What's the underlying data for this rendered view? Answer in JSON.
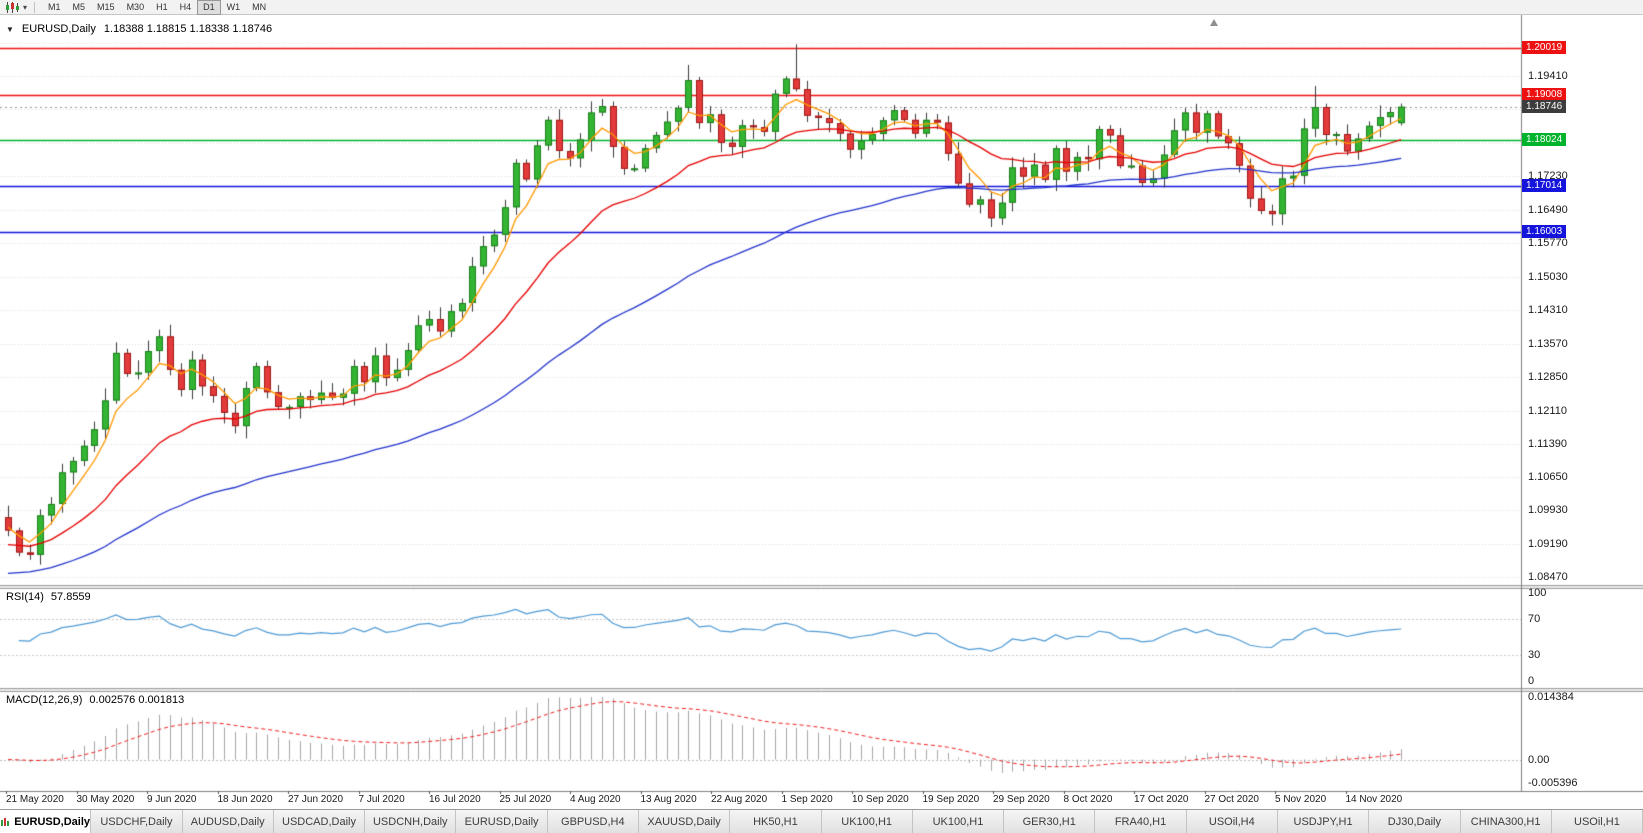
{
  "toolbar": {
    "timeframes": [
      "M1",
      "M5",
      "M15",
      "M30",
      "H1",
      "H4",
      "D1",
      "W1",
      "MN"
    ],
    "active_timeframe": "D1",
    "chart_type_icon": "candlestick-icon",
    "dropdown_icon": "chevron-down-icon"
  },
  "chart": {
    "header": {
      "symbol": "EURUSD,Daily",
      "ohlc": "1.18388 1.18815 1.18338 1.18746"
    }
  },
  "rsi": {
    "label": "RSI(14)",
    "value": "57.8559",
    "axis_labels": [
      "100",
      "70",
      "30",
      "0"
    ],
    "levels": [
      70,
      30
    ],
    "color": "#4f9bd5",
    "level_line_color": "#c9c9c9"
  },
  "macd": {
    "label": "MACD(12,26,9)",
    "value": "0.002576 0.001813",
    "axis_labels": {
      "max": "0.014384",
      "zero": "0.00",
      "min": "-0.005396"
    },
    "hist_color": "#a6a6a6",
    "signal_color": "#ee2222"
  },
  "tabs": [
    {
      "label": "EURUSD,Daily",
      "active": true
    },
    {
      "label": "USDCHF,Daily",
      "active": false
    },
    {
      "label": "AUDUSD,Daily",
      "active": false
    },
    {
      "label": "USDCAD,Daily",
      "active": false
    },
    {
      "label": "USDCNH,Daily",
      "active": false
    },
    {
      "label": "EURUSD,Daily",
      "active": false
    },
    {
      "label": "GBPUSD,H4",
      "active": false
    },
    {
      "label": "XAUUSD,Daily",
      "active": false
    },
    {
      "label": "HK50,H1",
      "active": false
    },
    {
      "label": "UK100,H1",
      "active": false
    },
    {
      "label": "UK100,H1",
      "active": false
    },
    {
      "label": "GER30,H1",
      "active": false
    },
    {
      "label": "FRA40,H1",
      "active": false
    },
    {
      "label": "USOil,H4",
      "active": false
    },
    {
      "label": "USDJPY,H1",
      "active": false
    },
    {
      "label": "DJ30,Daily",
      "active": false
    },
    {
      "label": "CHINA300,H1",
      "active": false
    },
    {
      "label": "USOil,H1",
      "active": false
    }
  ],
  "chart_data": {
    "type": "candlestick",
    "title": "EURUSD,Daily",
    "x_dates": [
      "21 May 2020",
      "30 May 2020",
      "9 Jun 2020",
      "18 Jun 2020",
      "27 Jun 2020",
      "7 Jul 2020",
      "16 Jul 2020",
      "25 Jul 2020",
      "4 Aug 2020",
      "13 Aug 2020",
      "22 Aug 2020",
      "1 Sep 2020",
      "10 Sep 2020",
      "19 Sep 2020",
      "29 Sep 2020",
      "8 Oct 2020",
      "17 Oct 2020",
      "27 Oct 2020",
      "5 Nov 2020",
      "14 Nov 2020"
    ],
    "price_axis": {
      "min": 1.083,
      "max": 1.2075,
      "ticks_labeled": [
        1.1941,
        1.1723,
        1.1649,
        1.1577,
        1.1503,
        1.1431,
        1.1357,
        1.1285,
        1.1211,
        1.1139,
        1.1065,
        1.0993,
        1.0919,
        1.0847
      ],
      "ticks_hidden": [
        1.2013,
        1.1869,
        1.1795
      ]
    },
    "first_open": 1.0978,
    "wick": 0.0022,
    "closes": [
      1.0949,
      1.0901,
      1.0896,
      1.0982,
      1.1007,
      1.1076,
      1.1101,
      1.1134,
      1.117,
      1.1233,
      1.1337,
      1.1291,
      1.1294,
      1.1341,
      1.1373,
      1.13,
      1.1256,
      1.1322,
      1.1264,
      1.1243,
      1.1206,
      1.1177,
      1.126,
      1.1308,
      1.1251,
      1.1219,
      1.1219,
      1.1242,
      1.1234,
      1.125,
      1.1239,
      1.1248,
      1.1308,
      1.1273,
      1.1331,
      1.1282,
      1.13,
      1.1343,
      1.1397,
      1.1411,
      1.1384,
      1.1428,
      1.1446,
      1.1526,
      1.157,
      1.1595,
      1.1655,
      1.1752,
      1.1716,
      1.179,
      1.1846,
      1.1778,
      1.1762,
      1.1803,
      1.1862,
      1.1876,
      1.1787,
      1.1739,
      1.174,
      1.1784,
      1.1813,
      1.1842,
      1.1872,
      1.1933,
      1.1839,
      1.1858,
      1.1796,
      1.1787,
      1.1834,
      1.183,
      1.182,
      1.1903,
      1.1936,
      1.1913,
      1.1855,
      1.185,
      1.1839,
      1.1816,
      1.1781,
      1.1801,
      1.1815,
      1.1845,
      1.1867,
      1.1846,
      1.1816,
      1.1846,
      1.184,
      1.1772,
      1.1707,
      1.1661,
      1.1672,
      1.1631,
      1.1665,
      1.1742,
      1.1722,
      1.1748,
      1.1715,
      1.1784,
      1.1733,
      1.1765,
      1.176,
      1.1826,
      1.1812,
      1.1745,
      1.1746,
      1.1708,
      1.1718,
      1.177,
      1.1823,
      1.1862,
      1.1818,
      1.186,
      1.181,
      1.1795,
      1.1746,
      1.1674,
      1.1647,
      1.164,
      1.1718,
      1.1724,
      1.1827,
      1.1874,
      1.1813,
      1.1815,
      1.1777,
      1.1805,
      1.1833,
      1.1852,
      1.1863,
      1.18746
    ],
    "overrides": {
      "2": {
        "low": 1.0885
      },
      "63": {
        "high": 1.1966
      },
      "73": {
        "high": 1.2011
      },
      "91": {
        "low": 1.1612
      },
      "116": {
        "low": 1.164
      },
      "121": {
        "high": 1.192
      },
      "129": {
        "open": 1.18388,
        "high": 1.18815,
        "low": 1.18338,
        "close": 1.18746
      }
    },
    "candle_up_color": "#33b533",
    "candle_up_border": "#1d7f1d",
    "candle_down_color": "#e33b3b",
    "candle_down_border": "#a01818",
    "wick_color": "#3c3c3c",
    "hlines": [
      {
        "price": 1.20019,
        "label": "1.20019",
        "color": "#ee1111"
      },
      {
        "price": 1.19008,
        "label": "1.19008",
        "color": "#ee1111"
      },
      {
        "price": 1.18024,
        "label": "1.18024",
        "color": "#00b32c"
      },
      {
        "price": 1.17014,
        "label": "1.17014",
        "color": "#1414dd"
      },
      {
        "price": 1.16003,
        "label": "1.16003",
        "color": "#1414dd"
      }
    ],
    "current_price": {
      "value": 1.18746,
      "label": "1.18746",
      "badge_color": "#3d3d3d"
    },
    "moving_averages": [
      {
        "period": 5,
        "color": "#ff9900",
        "seed": 1.096
      },
      {
        "period": 20,
        "color": "#e60000",
        "seed": 1.0915
      },
      {
        "period": 55,
        "color": "#2233cc",
        "seed": 1.0852
      }
    ],
    "rsi": {
      "period": 14,
      "current": 57.8559
    },
    "macd": {
      "fast": 12,
      "slow": 26,
      "signal": 9,
      "axis_max": 0.014384,
      "axis_min": -0.005396,
      "current": 0.002576,
      "current_signal": 0.001813
    }
  }
}
